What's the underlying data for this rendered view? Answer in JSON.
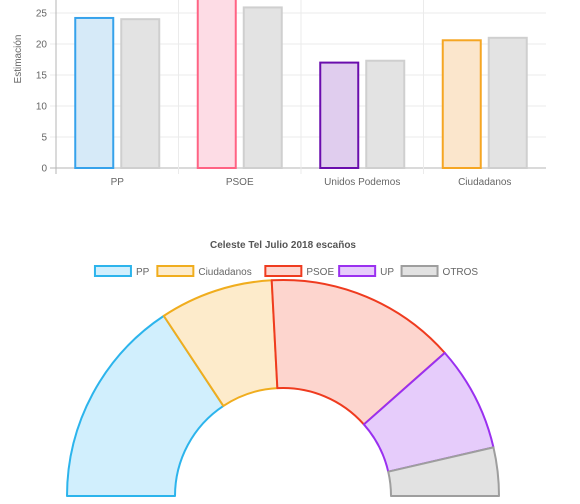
{
  "chart_data": [
    {
      "type": "bar",
      "ylabel": "Estimación",
      "ylim": [
        0,
        27
      ],
      "yticks": [
        0,
        5,
        10,
        15,
        20,
        25
      ],
      "grid": true,
      "categories": [
        "PP",
        "PSOE",
        "Unidos Podemos",
        "Ciudadanos"
      ],
      "series": [
        {
          "values": [
            24.2,
            27.3,
            17.0,
            20.6
          ]
        },
        {
          "values": [
            24.0,
            25.9,
            17.3,
            21.0
          ]
        }
      ],
      "colors": {
        "fills": [
          "#d6eaf8",
          "#fddce5",
          "#e0cdee",
          "#fbe6cc"
        ],
        "strokes": [
          "#36a2eb",
          "#ff6384",
          "#6a0dad",
          "#f5a623"
        ],
        "second_fill": "#e3e3e3",
        "second_stroke": "#cfcfcf"
      }
    },
    {
      "type": "pie",
      "subtype": "half-doughnut",
      "title": "Celeste Tel Julio 2018 escaños",
      "legend_position": "top",
      "labels": [
        "PP",
        "Ciudadanos",
        "PSOE",
        "UP",
        "OTROS"
      ],
      "values": [
        113,
        61,
        103,
        57,
        26
      ],
      "colors": {
        "fills": [
          "#d1effd",
          "#fdebcb",
          "#fdd5ce",
          "#e6ccfb",
          "#e2e2e2"
        ],
        "strokes": [
          "#2cb4ec",
          "#f0ad1e",
          "#ef3b1f",
          "#9a30f0",
          "#9e9e9e"
        ]
      }
    }
  ]
}
